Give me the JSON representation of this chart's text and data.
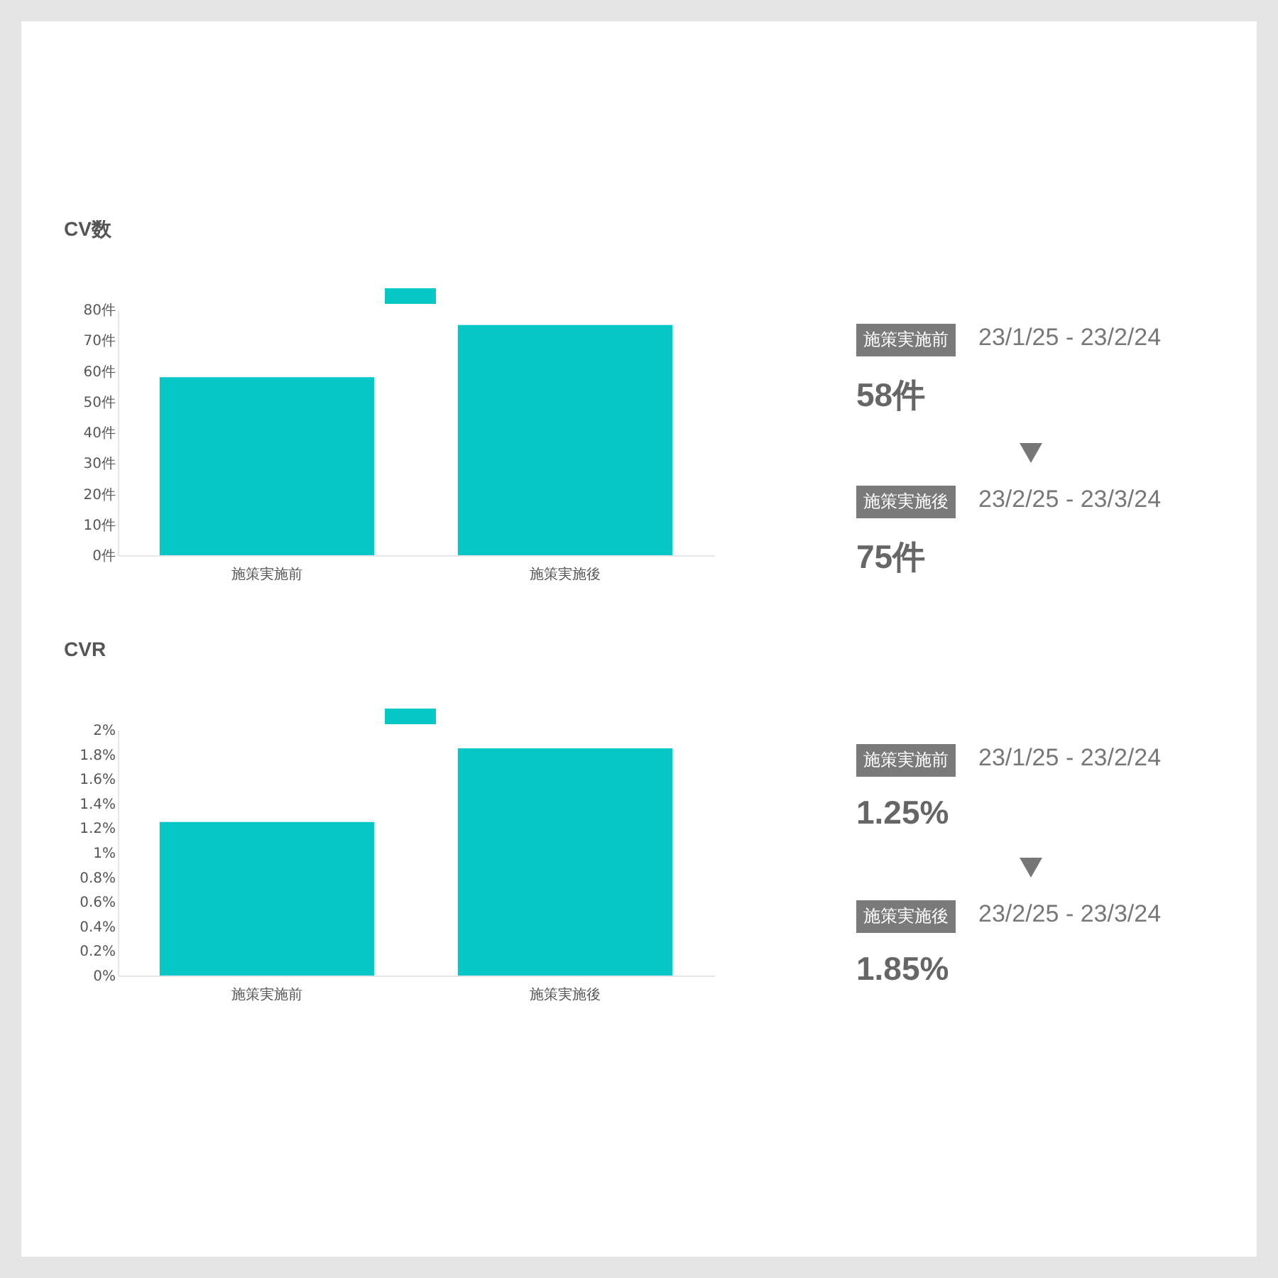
{
  "chart_data": [
    {
      "type": "bar",
      "title": "CV数",
      "categories": [
        "施策実施前",
        "施策実施後"
      ],
      "series": [
        {
          "color": "#06c7c6",
          "values": [
            58,
            75
          ]
        }
      ],
      "ylim": [
        0,
        80
      ],
      "yticks": [
        {
          "value": 0,
          "label": "0件"
        },
        {
          "value": 10,
          "label": "10件"
        },
        {
          "value": 20,
          "label": "20件"
        },
        {
          "value": 30,
          "label": "30件"
        },
        {
          "value": 40,
          "label": "40件"
        },
        {
          "value": 50,
          "label": "50件"
        },
        {
          "value": 60,
          "label": "60件"
        },
        {
          "value": 70,
          "label": "70件"
        },
        {
          "value": 80,
          "label": "80件"
        }
      ],
      "grid": false
    },
    {
      "type": "other",
      "annotations": [
        "施策実施前",
        "23/1/25 - 23/2/24",
        "58件",
        "施策実施後",
        "23/2/25 - 23/3/24",
        "75件"
      ]
    },
    {
      "type": "bar",
      "title": "CVR",
      "categories": [
        "施策実施前",
        "施策実施後"
      ],
      "series": [
        {
          "color": "#06c7c6",
          "values": [
            1.25,
            1.85
          ]
        }
      ],
      "ylim": [
        0,
        2
      ],
      "yticks": [
        {
          "value": 0,
          "label": "0%"
        },
        {
          "value": 0.2,
          "label": "0.2%"
        },
        {
          "value": 0.4,
          "label": "0.4%"
        },
        {
          "value": 0.6,
          "label": "0.6%"
        },
        {
          "value": 0.8,
          "label": "0.8%"
        },
        {
          "value": 1,
          "label": "1%"
        },
        {
          "value": 1.2,
          "label": "1.2%"
        },
        {
          "value": 1.4,
          "label": "1.4%"
        },
        {
          "value": 1.6,
          "label": "1.6%"
        },
        {
          "value": 1.8,
          "label": "1.8%"
        },
        {
          "value": 2,
          "label": "2%"
        }
      ],
      "grid": false
    },
    {
      "type": "other",
      "annotations": [
        "施策実施前",
        "23/1/25 - 23/2/24",
        "1.25%",
        "施策実施後",
        "23/2/25 - 23/3/24",
        "1.85%"
      ]
    }
  ]
}
